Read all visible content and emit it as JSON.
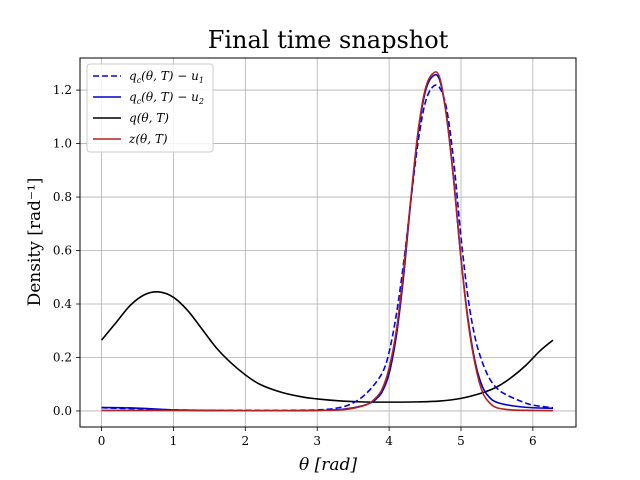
{
  "chart_data": {
    "type": "line",
    "title": "Final time snapshot",
    "xlabel": "θ [rad]",
    "ylabel": "Density [rad⁻¹]",
    "xlim": [
      -0.3,
      6.6
    ],
    "ylim": [
      -0.06,
      1.32
    ],
    "xticks": [
      0,
      1,
      2,
      3,
      4,
      5,
      6
    ],
    "yticks": [
      0.0,
      0.2,
      0.4,
      0.6,
      0.8,
      1.0,
      1.2
    ],
    "xtick_labels": [
      "0",
      "1",
      "2",
      "3",
      "4",
      "5",
      "6"
    ],
    "ytick_labels": [
      "0.0",
      "0.2",
      "0.4",
      "0.6",
      "0.8",
      "1.0",
      "1.2"
    ],
    "grid": true,
    "legend_position": "top-left",
    "series": [
      {
        "name": "qc(θ,T) − u1",
        "color": "#0000ff",
        "dash": "dashed",
        "x": [
          0,
          0.5,
          1.0,
          1.5,
          2.0,
          2.5,
          3.0,
          3.3,
          3.5,
          3.7,
          3.9,
          4.0,
          4.1,
          4.2,
          4.3,
          4.4,
          4.5,
          4.6,
          4.7,
          4.8,
          4.9,
          5.0,
          5.1,
          5.2,
          5.3,
          5.4,
          5.5,
          5.6,
          5.8,
          6.0,
          6.28
        ],
        "y": [
          0.012,
          0.008,
          0.004,
          0.002,
          0.002,
          0.002,
          0.004,
          0.012,
          0.03,
          0.07,
          0.14,
          0.22,
          0.36,
          0.55,
          0.78,
          1.0,
          1.15,
          1.21,
          1.21,
          1.13,
          0.93,
          0.65,
          0.42,
          0.27,
          0.18,
          0.12,
          0.085,
          0.065,
          0.04,
          0.022,
          0.012
        ]
      },
      {
        "name": "qc(θ,T) − u2",
        "color": "#0000cd",
        "dash": "solid",
        "x": [
          0,
          0.3,
          0.7,
          1.0,
          1.5,
          2.0,
          2.5,
          3.0,
          3.3,
          3.5,
          3.7,
          3.8,
          3.9,
          4.0,
          4.1,
          4.2,
          4.3,
          4.4,
          4.5,
          4.6,
          4.7,
          4.8,
          4.9,
          5.0,
          5.1,
          5.2,
          5.3,
          5.4,
          5.5,
          5.7,
          6.0,
          6.28
        ],
        "y": [
          0.013,
          0.012,
          0.008,
          0.004,
          0.002,
          0.001,
          0.001,
          0.002,
          0.005,
          0.012,
          0.025,
          0.04,
          0.07,
          0.14,
          0.28,
          0.5,
          0.78,
          1.03,
          1.19,
          1.25,
          1.24,
          1.1,
          0.86,
          0.57,
          0.34,
          0.18,
          0.09,
          0.05,
          0.032,
          0.02,
          0.012,
          0.01
        ]
      },
      {
        "name": "q(θ,T)",
        "color": "#000000",
        "dash": "solid",
        "x": [
          0,
          0.2,
          0.4,
          0.6,
          0.8,
          1.0,
          1.2,
          1.4,
          1.6,
          1.8,
          2.0,
          2.2,
          2.5,
          2.8,
          3.0,
          3.3,
          3.6,
          4.0,
          4.4,
          4.7,
          5.0,
          5.3,
          5.5,
          5.7,
          5.9,
          6.1,
          6.28
        ],
        "y": [
          0.265,
          0.33,
          0.395,
          0.435,
          0.445,
          0.425,
          0.375,
          0.305,
          0.235,
          0.18,
          0.135,
          0.1,
          0.07,
          0.052,
          0.045,
          0.038,
          0.034,
          0.033,
          0.034,
          0.037,
          0.047,
          0.068,
          0.09,
          0.125,
          0.17,
          0.225,
          0.265
        ]
      },
      {
        "name": "z(θ,T)",
        "color": "#b22222",
        "dash": "solid",
        "x": [
          0,
          0.5,
          1.0,
          1.5,
          2.0,
          2.5,
          3.0,
          3.3,
          3.5,
          3.7,
          3.8,
          3.9,
          4.0,
          4.1,
          4.2,
          4.3,
          4.4,
          4.5,
          4.6,
          4.7,
          4.8,
          4.9,
          5.0,
          5.1,
          5.2,
          5.3,
          5.4,
          5.5,
          5.7,
          6.0,
          6.28
        ],
        "y": [
          0.002,
          0.002,
          0.002,
          0.001,
          0.001,
          0.001,
          0.002,
          0.004,
          0.01,
          0.025,
          0.045,
          0.08,
          0.16,
          0.3,
          0.52,
          0.79,
          1.04,
          1.2,
          1.26,
          1.25,
          1.1,
          0.86,
          0.57,
          0.33,
          0.17,
          0.07,
          0.03,
          0.012,
          0.004,
          0.002,
          0.001
        ]
      }
    ]
  },
  "legend": {
    "items": [
      {
        "base": "q",
        "sub": "c",
        "args": "(θ, T) − u",
        "sub2": "1"
      },
      {
        "base": "q",
        "sub": "c",
        "args": "(θ, T) − u",
        "sub2": "2"
      },
      {
        "base": "q",
        "sub": "",
        "args": "(θ, T)",
        "sub2": ""
      },
      {
        "base": "z",
        "sub": "",
        "args": "(θ, T)",
        "sub2": ""
      }
    ]
  }
}
